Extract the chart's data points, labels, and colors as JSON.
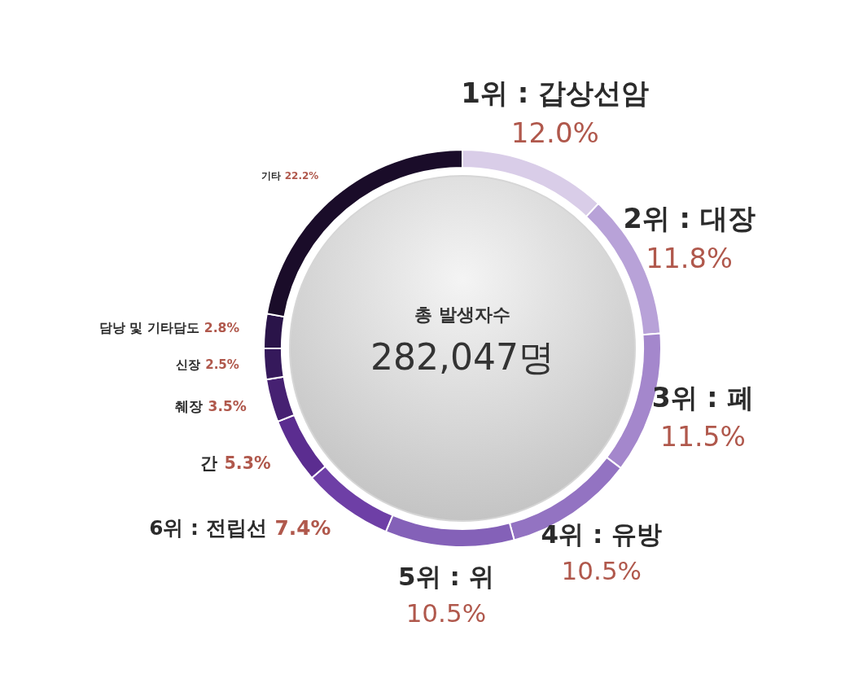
{
  "chart_data": {
    "type": "donut",
    "categories": [
      "1위 : 갑상선암",
      "2위 : 대장",
      "3위 : 폐",
      "4위 : 유방",
      "5위 : 위",
      "6위 : 전립선",
      "간",
      "췌장",
      "신장",
      "담낭 및 기타담도",
      "기타"
    ],
    "values": [
      12.0,
      11.8,
      11.5,
      10.5,
      10.5,
      7.4,
      5.3,
      3.5,
      2.5,
      2.8,
      22.2
    ],
    "value_labels": [
      "12.0%",
      "11.8%",
      "11.5%",
      "10.5%",
      "10.5%",
      "7.4%",
      "5.3%",
      "3.5%",
      "2.5%",
      "2.8%",
      "22.2%"
    ],
    "colors": [
      "#d9cde8",
      "#b8a2d8",
      "#a487cc",
      "#9373c2",
      "#8461b8",
      "#6e3fa6",
      "#5b2d90",
      "#462172",
      "#35195b",
      "#2a1449",
      "#1a0c29"
    ],
    "annotations": [
      "총 발생자수",
      "282,047명"
    ],
    "legend": false
  }
}
